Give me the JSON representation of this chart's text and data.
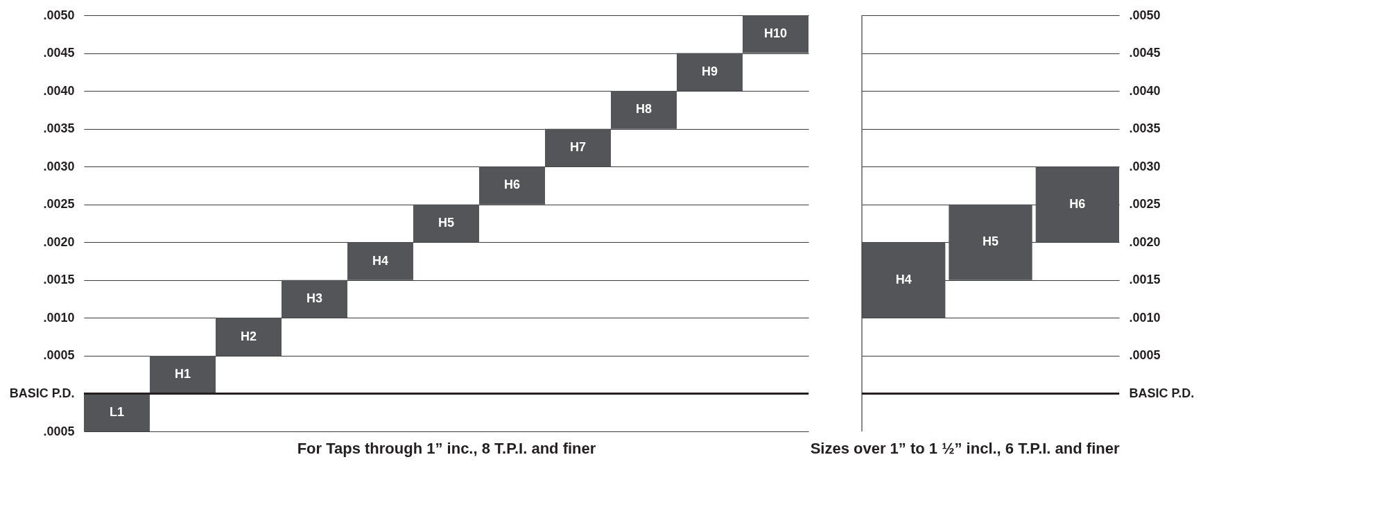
{
  "chart_data": [
    {
      "type": "bar",
      "xlabel": "For Taps through 1” inc., 8 T.P.I. and finer",
      "categories": [
        "L1",
        "H1",
        "H2",
        "H3",
        "H4",
        "H5",
        "H6",
        "H7",
        "H8",
        "H9",
        "H10"
      ],
      "values": [
        0.0005,
        0.0005,
        0.0005,
        0.0005,
        0.0005,
        0.0005,
        0.0005,
        0.0005,
        0.0005,
        0.0005,
        0.0005
      ],
      "color": "#545559",
      "base": [
        -0.0005,
        0,
        0.0005,
        0.001,
        0.0015,
        0.002,
        0.0025,
        0.003,
        0.0035,
        0.004,
        0.0045
      ],
      "ylim": [
        -0.0005,
        0.005
      ],
      "yticks": [
        {
          "value": -0.0005,
          "label": ".0005"
        },
        {
          "value": 0,
          "label": "BASIC P.D."
        },
        {
          "value": 0.0005,
          "label": ".0005"
        },
        {
          "value": 0.001,
          "label": ".0010"
        },
        {
          "value": 0.0015,
          "label": ".0015"
        },
        {
          "value": 0.002,
          "label": ".0020"
        },
        {
          "value": 0.0025,
          "label": ".0025"
        },
        {
          "value": 0.003,
          "label": ".0030"
        },
        {
          "value": 0.0035,
          "label": ".0035"
        },
        {
          "value": 0.004,
          "label": ".0040"
        },
        {
          "value": 0.0045,
          "label": ".0045"
        },
        {
          "value": 0.005,
          "label": ".0050"
        }
      ],
      "ref_lines": [
        {
          "axis": "y",
          "value": 0,
          "color": "#231f20"
        }
      ],
      "grid": "y",
      "tick_labels": "y"
    },
    {
      "type": "bar",
      "xlabel": "Sizes over 1” to 1 ½” incl., 6 T.P.I. and finer",
      "categories": [
        "H4",
        "H5",
        "H6"
      ],
      "values": [
        0.001,
        0.001,
        0.001
      ],
      "color": "#545559",
      "base": [
        0.001,
        0.0015,
        0.002
      ],
      "ylim": [
        -0.0005,
        0.005
      ],
      "yticks": [
        {
          "value": 0,
          "label": "BASIC P.D."
        },
        {
          "value": 0.0005,
          "label": ".0005"
        },
        {
          "value": 0.001,
          "label": ".0010"
        },
        {
          "value": 0.0015,
          "label": ".0015"
        },
        {
          "value": 0.002,
          "label": ".0020"
        },
        {
          "value": 0.0025,
          "label": ".0025"
        },
        {
          "value": 0.003,
          "label": ".0030"
        },
        {
          "value": 0.0035,
          "label": ".0035"
        },
        {
          "value": 0.004,
          "label": ".0040"
        },
        {
          "value": 0.0045,
          "label": ".0045"
        },
        {
          "value": 0.005,
          "label": ".0050"
        }
      ],
      "ref_lines": [
        {
          "axis": "y",
          "value": 0,
          "color": "#231f20"
        }
      ],
      "grid": "y",
      "tick_labels": "y"
    }
  ]
}
